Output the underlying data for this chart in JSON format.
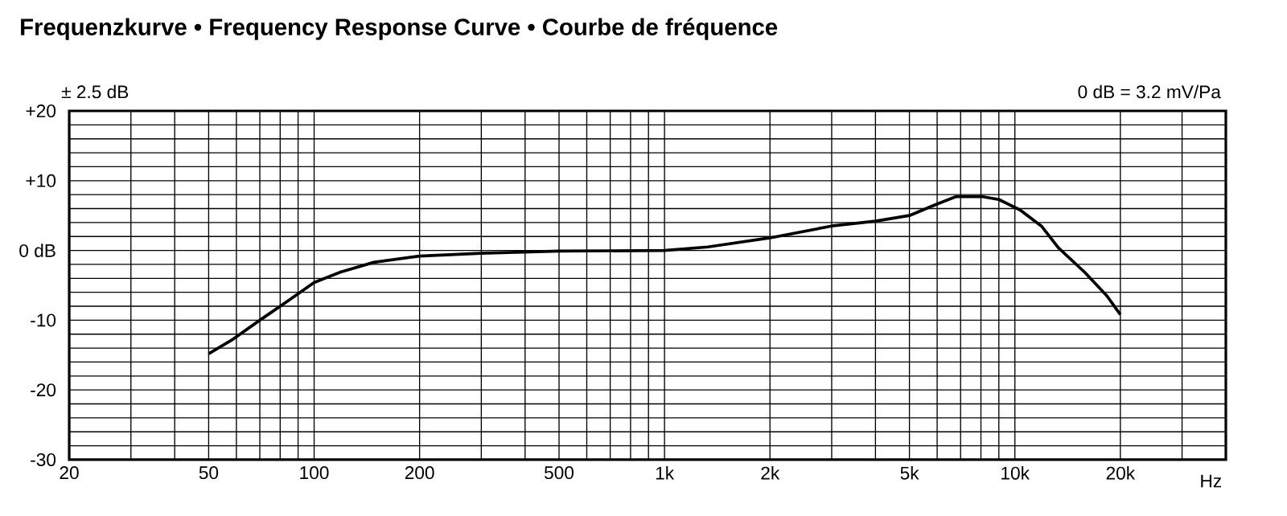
{
  "chart_data": {
    "type": "line",
    "title": "**Frequenzkurve • Frequency Response Curve • Courbe de fréquence**",
    "xlabel": "Hz",
    "annotations": [
      "± 2.5 dB",
      "0 dB = 3.2 mV/Pa"
    ],
    "log": "x",
    "grid": true,
    "x": [
      50,
      58.8,
      70,
      83.8,
      100,
      119,
      148,
      200,
      299,
      500,
      1000,
      1330,
      2000,
      3000,
      4000,
      5000,
      5890,
      6780,
      8100,
      9000,
      10350,
      11900,
      13300,
      15800,
      18300,
      20000
    ],
    "series": [
      {
        "color": "#000000",
        "values": [
          -14.8,
          -12.7,
          -10.0,
          -7.3,
          -4.6,
          -3.1,
          -1.7,
          -0.8,
          -0.4,
          -0.1,
          0,
          0.5,
          1.8,
          3.5,
          4.2,
          5.0,
          6.5,
          7.7,
          7.7,
          7.3,
          5.8,
          3.5,
          0.4,
          -3.1,
          -6.5,
          -9.2
        ]
      }
    ],
    "xlim": [
      20,
      40000
    ],
    "ylim": [
      -30,
      20
    ],
    "xticks": [
      20,
      {
        "value": 30,
        "label": null
      },
      {
        "value": 40,
        "label": null
      },
      50,
      {
        "value": 60,
        "label": null
      },
      {
        "value": 70,
        "label": null
      },
      {
        "value": 80,
        "label": null
      },
      {
        "value": 90,
        "label": null
      },
      100,
      200,
      {
        "value": 300,
        "label": null
      },
      {
        "value": 400,
        "label": null
      },
      500,
      {
        "value": 600,
        "label": null
      },
      {
        "value": 700,
        "label": null
      },
      {
        "value": 800,
        "label": null
      },
      {
        "value": 900,
        "label": null
      },
      {
        "value": 1000,
        "label": "1k"
      },
      {
        "value": 2000,
        "label": "2k"
      },
      {
        "value": 3000,
        "label": null
      },
      {
        "value": 4000,
        "label": null
      },
      {
        "value": 5000,
        "label": "5k"
      },
      {
        "value": 6000,
        "label": null
      },
      {
        "value": 7000,
        "label": null
      },
      {
        "value": 8000,
        "label": null
      },
      {
        "value": 9000,
        "label": null
      },
      {
        "value": 10000,
        "label": "10k"
      },
      {
        "value": 20000,
        "label": "20k"
      },
      {
        "value": 30000,
        "label": null
      },
      {
        "value": 40000,
        "label": null
      }
    ],
    "yticks": [
      {
        "value": -30,
        "label": "-30"
      },
      {
        "value": -28,
        "label": null
      },
      {
        "value": -26,
        "label": null
      },
      {
        "value": -24,
        "label": null
      },
      {
        "value": -22,
        "label": null
      },
      {
        "value": -20,
        "label": "-20"
      },
      {
        "value": -18,
        "label": null
      },
      {
        "value": -16,
        "label": null
      },
      {
        "value": -14,
        "label": null
      },
      {
        "value": -12,
        "label": null
      },
      {
        "value": -10,
        "label": "-10"
      },
      {
        "value": -8,
        "label": null
      },
      {
        "value": -6,
        "label": null
      },
      {
        "value": -4,
        "label": null
      },
      {
        "value": -2,
        "label": null
      },
      {
        "value": 0,
        "label": "0 dB"
      },
      {
        "value": 2,
        "label": null
      },
      {
        "value": 4,
        "label": null
      },
      {
        "value": 6,
        "label": null
      },
      {
        "value": 8,
        "label": null
      },
      {
        "value": 10,
        "label": "+10"
      },
      {
        "value": 12,
        "label": null
      },
      {
        "value": 14,
        "label": null
      },
      {
        "value": 16,
        "label": null
      },
      {
        "value": 18,
        "label": null
      },
      {
        "value": 20,
        "label": "+20"
      }
    ]
  }
}
